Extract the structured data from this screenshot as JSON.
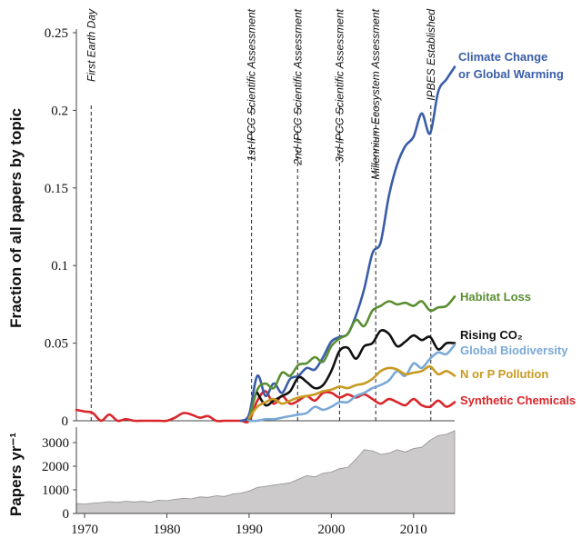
{
  "chart_data": [
    {
      "type": "line",
      "ylabel": "Fraction of all papers by topic",
      "ylim": [
        0,
        0.25
      ],
      "xlim": [
        1969,
        2015
      ],
      "y_ticks": [
        "0",
        "0.05",
        "0.1",
        "0.15",
        "0.2",
        "0.25"
      ],
      "events": [
        {
          "label": "First Earth Day",
          "x": 1970.8
        },
        {
          "label": "1st IPCC Scientific Assessment",
          "x": 1990.3
        },
        {
          "label": "2nd IPCC Scientific Assessment",
          "x": 1995.9
        },
        {
          "label": "3rd IPCC Scientific Assessment",
          "x": 2001.0
        },
        {
          "label": "Millennium Ecosystem Assessment",
          "x": 2005.4
        },
        {
          "label": "IPBES Established",
          "x": 2012.1
        }
      ],
      "series": [
        {
          "name": "Synthetic Chemicals",
          "label_lines": [
            "Synthetic Chemicals"
          ],
          "color": "#d9262a",
          "x": [
            1969,
            1970,
            1971,
            1972,
            1973,
            1974,
            1975,
            1976,
            1977,
            1978,
            1979,
            1980,
            1981,
            1982,
            1983,
            1984,
            1985,
            1986,
            1987,
            1988,
            1989,
            1990,
            1991,
            1992,
            1993,
            1994,
            1995,
            1996,
            1997,
            1998,
            1999,
            2000,
            2001,
            2002,
            2003,
            2004,
            2005,
            2006,
            2007,
            2008,
            2009,
            2010,
            2011,
            2012,
            2013,
            2014,
            2015
          ],
          "values": [
            0.007,
            0.006,
            0.005,
            0,
            0.004,
            0,
            0.001,
            0,
            0,
            0,
            0,
            0,
            0.002,
            0.005,
            0.004,
            0.002,
            0.003,
            0,
            0,
            0,
            0,
            0,
            0.013,
            0.019,
            0.011,
            0.016,
            0.011,
            0.013,
            0.016,
            0.013,
            0.018,
            0.018,
            0.015,
            0.017,
            0.015,
            0.017,
            0.014,
            0.011,
            0.014,
            0.012,
            0.01,
            0.014,
            0.01,
            0.009,
            0.013,
            0.009,
            0.012
          ]
        },
        {
          "name": "Climate Change or Global Warming",
          "label_lines": [
            "Climate Change",
            "or Global Warming"
          ],
          "color": "#3a5da8",
          "x": [
            1989,
            1990,
            1991,
            1992,
            1993,
            1994,
            1995,
            1996,
            1997,
            1998,
            1999,
            2000,
            2001,
            2002,
            2003,
            2004,
            2005,
            2006,
            2007,
            2008,
            2009,
            2010,
            2011,
            2012,
            2013,
            2014,
            2015
          ],
          "values": [
            0,
            0.004,
            0.029,
            0.016,
            0.024,
            0.018,
            0.027,
            0.029,
            0.034,
            0.033,
            0.041,
            0.051,
            0.054,
            0.056,
            0.068,
            0.085,
            0.108,
            0.115,
            0.145,
            0.165,
            0.177,
            0.183,
            0.198,
            0.185,
            0.212,
            0.22,
            0.228
          ]
        },
        {
          "name": "Habitat Loss",
          "label_lines": [
            "Habitat Loss"
          ],
          "color": "#5a8e32",
          "x": [
            1990,
            1991,
            1992,
            1993,
            1994,
            1995,
            1996,
            1997,
            1998,
            1999,
            2000,
            2001,
            2002,
            2003,
            2004,
            2005,
            2006,
            2007,
            2008,
            2009,
            2010,
            2011,
            2012,
            2013,
            2014,
            2015
          ],
          "values": [
            0.001,
            0.02,
            0.024,
            0.021,
            0.031,
            0.029,
            0.036,
            0.037,
            0.041,
            0.038,
            0.048,
            0.053,
            0.056,
            0.065,
            0.061,
            0.071,
            0.074,
            0.077,
            0.075,
            0.076,
            0.074,
            0.077,
            0.071,
            0.073,
            0.074,
            0.08
          ]
        },
        {
          "name": "Rising CO₂",
          "label_lines": [
            "Rising CO₂"
          ],
          "color": "#111111",
          "x": [
            1991,
            1992,
            1993,
            1994,
            1995,
            1996,
            1997,
            1998,
            1999,
            2000,
            2001,
            2002,
            2003,
            2004,
            2005,
            2006,
            2007,
            2008,
            2009,
            2010,
            2011,
            2012,
            2013,
            2014,
            2015
          ],
          "values": [
            0.018,
            0.01,
            0.013,
            0.016,
            0.019,
            0.028,
            0.025,
            0.021,
            0.023,
            0.032,
            0.045,
            0.047,
            0.04,
            0.048,
            0.05,
            0.058,
            0.056,
            0.048,
            0.051,
            0.055,
            0.052,
            0.054,
            0.046,
            0.05,
            0.05
          ]
        },
        {
          "name": "Global Biodiversity",
          "label_lines": [
            "Global Biodiversity"
          ],
          "color": "#7aa9d6",
          "x": [
            1990,
            1991,
            1992,
            1993,
            1994,
            1995,
            1996,
            1997,
            1998,
            1999,
            2000,
            2001,
            2002,
            2003,
            2004,
            2005,
            2006,
            2007,
            2008,
            2009,
            2010,
            2011,
            2012,
            2013,
            2014,
            2015
          ],
          "values": [
            0,
            0,
            0.001,
            0.001,
            0.002,
            0.003,
            0.004,
            0.005,
            0.009,
            0.007,
            0.009,
            0.012,
            0.012,
            0.016,
            0.018,
            0.021,
            0.023,
            0.026,
            0.032,
            0.029,
            0.037,
            0.034,
            0.04,
            0.044,
            0.043,
            0.049
          ]
        },
        {
          "name": "N or P Pollution",
          "label_lines": [
            "N or P Pollution"
          ],
          "color": "#c89a22",
          "x": [
            1990,
            1991,
            1992,
            1993,
            1994,
            1995,
            1996,
            1997,
            1998,
            1999,
            2000,
            2001,
            2002,
            2003,
            2004,
            2005,
            2006,
            2007,
            2008,
            2009,
            2010,
            2011,
            2012,
            2013,
            2014,
            2015
          ],
          "values": [
            0.002,
            0.009,
            0.012,
            0.014,
            0.011,
            0.013,
            0.015,
            0.016,
            0.017,
            0.019,
            0.02,
            0.022,
            0.021,
            0.023,
            0.024,
            0.027,
            0.032,
            0.034,
            0.033,
            0.03,
            0.031,
            0.032,
            0.035,
            0.03,
            0.032,
            0.029
          ]
        }
      ]
    },
    {
      "type": "area",
      "ylabel": "Papers yr⁻¹",
      "ylim": [
        0,
        3500
      ],
      "xlim": [
        1969,
        2015
      ],
      "y_ticks": [
        "0",
        "1000",
        "2000",
        "3000"
      ],
      "x_ticks": [
        "1970",
        "1980",
        "1990",
        "2000",
        "2010"
      ],
      "color": "#cccaca",
      "x": [
        1969,
        1970,
        1971,
        1972,
        1973,
        1974,
        1975,
        1976,
        1977,
        1978,
        1979,
        1980,
        1981,
        1982,
        1983,
        1984,
        1985,
        1986,
        1987,
        1988,
        1989,
        1990,
        1991,
        1992,
        1993,
        1994,
        1995,
        1996,
        1997,
        1998,
        1999,
        2000,
        2001,
        2002,
        2003,
        2004,
        2005,
        2006,
        2007,
        2008,
        2009,
        2010,
        2011,
        2012,
        2013,
        2014,
        2015
      ],
      "values": [
        420,
        400,
        440,
        460,
        500,
        470,
        520,
        490,
        510,
        480,
        560,
        540,
        600,
        640,
        620,
        700,
        680,
        750,
        720,
        820,
        860,
        950,
        1100,
        1150,
        1200,
        1250,
        1300,
        1450,
        1600,
        1550,
        1700,
        1750,
        1900,
        1950,
        2300,
        2700,
        2650,
        2500,
        2550,
        2700,
        2600,
        2750,
        2800,
        3100,
        3300,
        3350,
        3500
      ]
    }
  ]
}
